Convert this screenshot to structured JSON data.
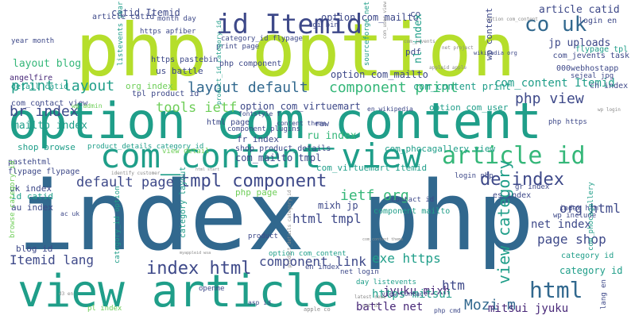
{
  "palette": {
    "yellowgreen": "#b5de2b",
    "green": "#35b779",
    "teal": "#1f9e89",
    "tealdark": "#26828e",
    "blue": "#31688e",
    "indigo": "#3e4989",
    "purple": "#482878",
    "dark": "#440154",
    "lime": "#6ece58",
    "grey": "#8a8a8a"
  },
  "words": [
    {
      "text": "index php",
      "color": "blue"
    },
    {
      "text": "php option",
      "color": "yellowgreen"
    },
    {
      "text": "option com_content",
      "color": "teal"
    },
    {
      "text": "view article",
      "color": "teal"
    },
    {
      "text": "com_content view",
      "color": "teal"
    },
    {
      "text": "id Itemid",
      "color": "indigo"
    },
    {
      "text": "article id",
      "color": "green"
    },
    {
      "text": "tmpl component",
      "color": "indigo"
    },
    {
      "text": "de index",
      "color": "indigo"
    },
    {
      "text": "index html",
      "color": "indigo"
    },
    {
      "text": "html",
      "color": "blue"
    },
    {
      "text": "default page",
      "color": "indigo"
    },
    {
      "text": "layout default",
      "color": "blue"
    },
    {
      "text": "component print",
      "color": "green"
    },
    {
      "text": "co uk",
      "color": "blue"
    },
    {
      "text": "print layout",
      "color": "teal"
    },
    {
      "text": "php view",
      "color": "indigo"
    },
    {
      "text": "view category",
      "color": "teal"
    },
    {
      "text": "br index",
      "color": "indigo"
    },
    {
      "text": "org html",
      "color": "indigo"
    },
    {
      "text": "com_content Itemid",
      "color": "teal"
    },
    {
      "text": "ietf org",
      "color": "green"
    },
    {
      "text": "html tmpl",
      "color": "indigo"
    },
    {
      "text": "component link",
      "color": "indigo"
    },
    {
      "text": "exe https",
      "color": "teal"
    },
    {
      "text": "Itemid lang",
      "color": "indigo"
    },
    {
      "text": "page shop",
      "color": "indigo"
    },
    {
      "text": "Mozi m",
      "color": "blue"
    },
    {
      "text": "jp uploads",
      "color": "indigo"
    },
    {
      "text": "tools ietf",
      "color": "lime"
    },
    {
      "text": "option com_virtuemart",
      "color": "indigo"
    },
    {
      "text": "article catid",
      "color": "indigo"
    },
    {
      "text": "layout blog",
      "color": "green"
    },
    {
      "text": "mailto index",
      "color": "teal"
    },
    {
      "text": "htm",
      "color": "indigo"
    },
    {
      "text": "shop browse",
      "color": "teal"
    },
    {
      "text": "com_phocagallery view",
      "color": "teal"
    },
    {
      "text": "com_virtuemart Itemid",
      "color": "teal"
    },
    {
      "text": "option com_mailto",
      "color": "indigo"
    },
    {
      "text": "com_mailto tmpl",
      "color": "indigo"
    },
    {
      "text": "jyuku mixh",
      "color": "purple"
    },
    {
      "text": "mitsui jyuku",
      "color": "purple"
    },
    {
      "text": "https mitsui",
      "color": "teal"
    },
    {
      "text": "battle net",
      "color": "purple"
    },
    {
      "text": "net index",
      "color": "indigo"
    },
    {
      "text": "category id",
      "color": "teal"
    },
    {
      "text": "org index",
      "color": "lime"
    },
    {
      "text": "catid Itemid",
      "color": "indigo"
    },
    {
      "text": "option com_mailto",
      "color": "indigo"
    },
    {
      "text": "https apfiber",
      "color": "indigo"
    },
    {
      "text": "ru index",
      "color": "green"
    },
    {
      "text": "fr index",
      "color": "indigo"
    },
    {
      "text": "uk index",
      "color": "indigo"
    },
    {
      "text": "au index",
      "color": "indigo"
    },
    {
      "text": "blog id",
      "color": "indigo"
    },
    {
      "text": "id catid",
      "color": "teal"
    },
    {
      "text": "pastehtml",
      "color": "indigo"
    },
    {
      "text": "mixh jp",
      "color": "indigo"
    },
    {
      "text": "flypage flypage",
      "color": "indigo"
    },
    {
      "text": "product_details category_id",
      "color": "teal"
    },
    {
      "text": "shop product_details",
      "color": "indigo"
    },
    {
      "text": "com_content print",
      "color": "teal"
    },
    {
      "text": "option com_user",
      "color": "teal"
    },
    {
      "text": "wp content",
      "color": "indigo"
    },
    {
      "text": "us battle",
      "color": "indigo"
    },
    {
      "text": "pdf",
      "color": "indigo"
    },
    {
      "text": "angelfire",
      "color": "purple"
    },
    {
      "text": "detail catid",
      "color": "teal"
    },
    {
      "text": "year month",
      "color": "indigo"
    },
    {
      "text": "com_contact view",
      "color": "indigo"
    },
    {
      "text": "tpl product id",
      "color": "indigo"
    },
    {
      "text": "https pastebin",
      "color": "indigo"
    },
    {
      "text": "php component",
      "color": "indigo"
    },
    {
      "text": "com_jevents task",
      "color": "indigo"
    },
    {
      "text": "sejeal jpg",
      "color": "indigo"
    },
    {
      "text": "000webhostapp",
      "color": "indigo"
    },
    {
      "text": "flypage tpl",
      "color": "teal"
    },
    {
      "text": "ch index",
      "color": "indigo"
    },
    {
      "text": "login en",
      "color": "indigo"
    },
    {
      "text": "co",
      "color": "indigo"
    },
    {
      "text": "nl index",
      "color": "teal"
    },
    {
      "text": "sourceforge net",
      "color": "teal"
    },
    {
      "text": "listevents year",
      "color": "teal"
    },
    {
      "text": "month day",
      "color": "indigo"
    },
    {
      "text": "category_id flypage",
      "color": "indigo"
    },
    {
      "text": "cgi bin",
      "color": "indigo"
    },
    {
      "text": "article catid",
      "color": "indigo"
    },
    {
      "text": "print page",
      "color": "indigo"
    },
    {
      "text": "html page",
      "color": "indigo"
    },
    {
      "text": "php page",
      "color": "lime"
    },
    {
      "text": "raw",
      "color": "indigo"
    },
    {
      "text": "category layout",
      "color": "teal"
    },
    {
      "text": "component mailto",
      "color": "teal"
    },
    {
      "text": "contact id",
      "color": "indigo"
    },
    {
      "text": "es index",
      "color": "indigo"
    },
    {
      "text": "gr index",
      "color": "indigo"
    },
    {
      "text": "index htm",
      "color": "indigo"
    },
    {
      "text": "wp include",
      "color": "indigo"
    },
    {
      "text": "category id",
      "color": "teal"
    },
    {
      "text": "php https",
      "color": "indigo"
    },
    {
      "text": "login php",
      "color": "indigo"
    },
    {
      "text": "browse category_id",
      "color": "lime"
    },
    {
      "text": "category_id option",
      "color": "teal"
    },
    {
      "text": "option com_content",
      "color": "teal"
    },
    {
      "text": "product",
      "color": "indigo"
    },
    {
      "text": "openme",
      "color": "indigo"
    },
    {
      "text": "day listevents",
      "color": "teal"
    },
    {
      "text": "net login",
      "color": "indigo"
    },
    {
      "text": "en index",
      "color": "indigo"
    },
    {
      "text": "pl index",
      "color": "lime"
    },
    {
      "text": "asp id",
      "color": "indigo"
    },
    {
      "text": "php cmd",
      "color": "indigo"
    },
    {
      "text": "lang en",
      "color": "indigo"
    },
    {
      "text": "ac uk",
      "color": "indigo"
    },
    {
      "text": "fontstyle f",
      "color": "indigo"
    },
    {
      "text": "component plugins",
      "color": "indigo"
    },
    {
      "text": "view detail",
      "color": "lime"
    },
    {
      "text": "content theme",
      "color": "indigo"
    },
    {
      "text": "product_id category_id",
      "color": "teal"
    },
    {
      "text": "com_phocagallery",
      "color": "teal"
    },
    {
      "text": "wp admin",
      "color": "lime"
    },
    {
      "text": "en wikipedia",
      "color": "indigo"
    },
    {
      "text": "wikipedia org",
      "color": "indigo"
    },
    {
      "text": "com_user view",
      "color": "grey"
    },
    {
      "text": "net project",
      "color": "grey"
    },
    {
      "text": "appleid apple",
      "color": "grey"
    },
    {
      "text": "com_jevents",
      "color": "grey"
    },
    {
      "text": "wp login",
      "color": "grey"
    },
    {
      "text": "view contact",
      "color": "indigo"
    },
    {
      "text": "apple co",
      "color": "grey"
    },
    {
      "text": "latest news",
      "color": "grey"
    },
    {
      "text": "identify customer",
      "color": "grey"
    },
    {
      "text": "html start",
      "color": "grey"
    },
    {
      "text": "myappleid wsa",
      "color": "grey"
    },
    {
      "text": "com_content theme",
      "color": "grey"
    },
    {
      "text": "product_details category_id",
      "color": "grey"
    },
    {
      "text": "net d3",
      "color": "grey"
    },
    {
      "text": "option com_content",
      "color": "grey"
    },
    {
      "text": "d3 en",
      "color": "grey"
    },
    {
      "text": "pl index",
      "color": "grey"
    }
  ]
}
